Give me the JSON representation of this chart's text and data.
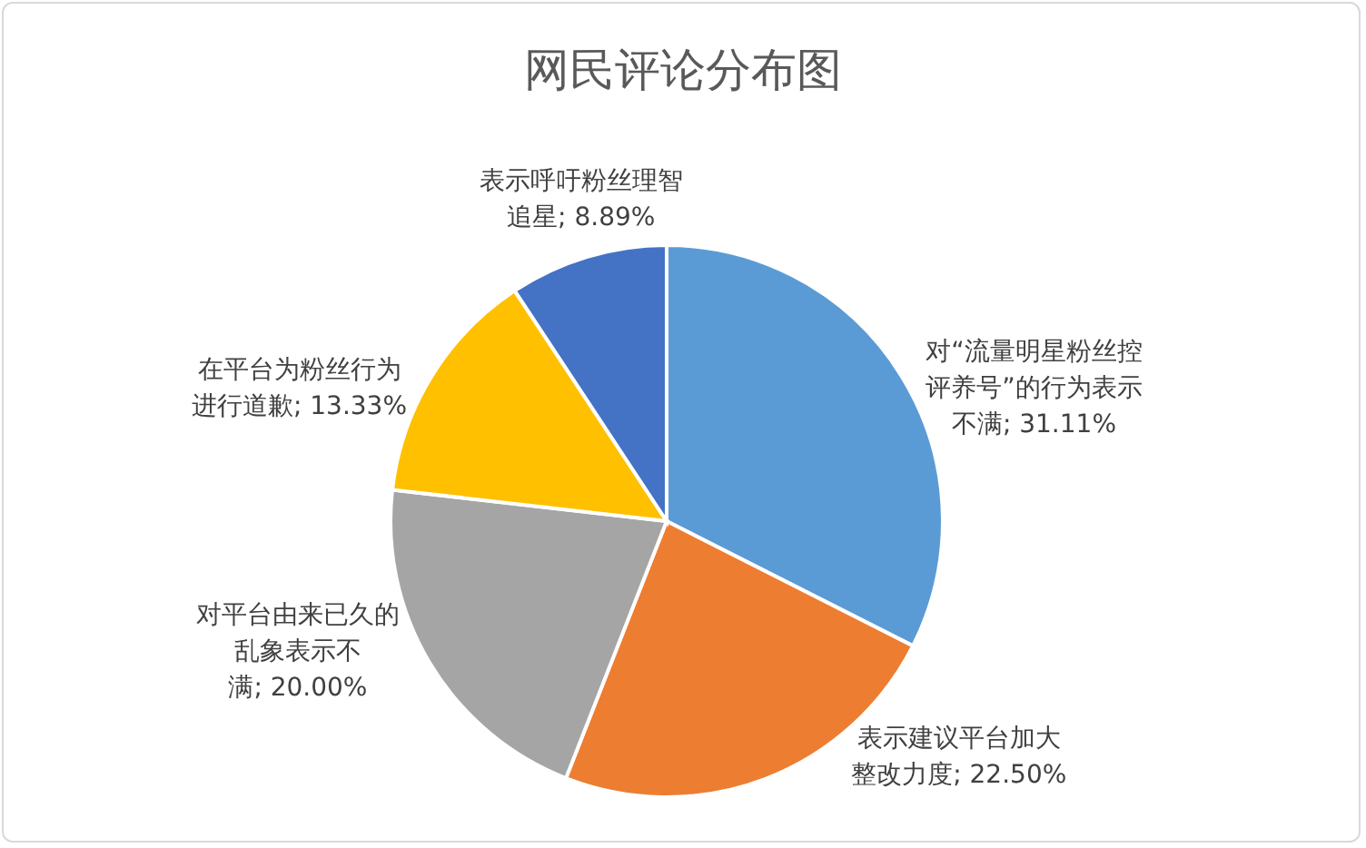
{
  "chart_data": {
    "type": "pie",
    "title": "网民评论分布图",
    "categories": [
      "对“流量明星粉丝控评养号”的行为表示不满",
      "表示建议平台加大整改力度",
      "对平台由来已久的乱象表示不满",
      "在平台为粉丝行为进行道歉",
      "表示呼吁粉丝理智追星"
    ],
    "values": [
      31.11,
      22.5,
      20.0,
      13.33,
      8.89
    ],
    "value_labels": [
      "; 31.11%",
      "; 22.50%",
      "; 20.00%",
      "; 13.33%",
      "; 8.89%"
    ],
    "colors": [
      "#5b9bd5",
      "#ed7d31",
      "#a5a5a5",
      "#ffc000",
      "#4472c4"
    ]
  }
}
